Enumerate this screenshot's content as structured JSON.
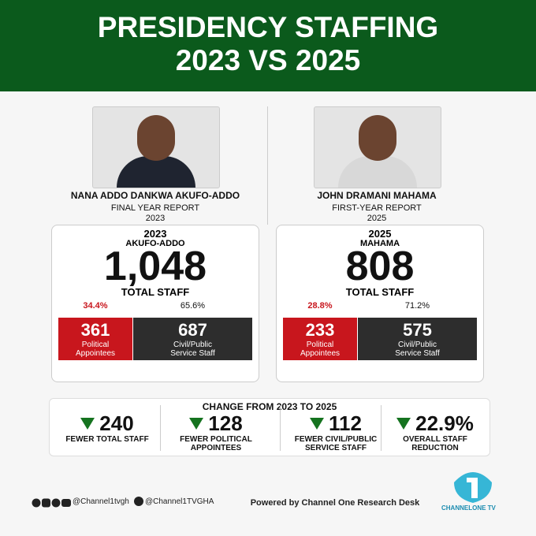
{
  "header": {
    "title_line1": "PRESIDENCY STAFFING",
    "title_line2": "2023 VS 2025"
  },
  "leaders": [
    {
      "name": "NANA ADDO DANKWA AKUFO-ADDO",
      "report": "FINAL YEAR REPORT",
      "year": "2023",
      "box": {
        "year": "2023",
        "name": "AKUFO-ADDO",
        "total": "1,048",
        "total_label": "TOTAL STAFF",
        "political": {
          "percent": "34.4%",
          "count": "361",
          "label_lines": [
            "Political",
            "Appointees"
          ]
        },
        "civil": {
          "percent": "65.6%",
          "count": "687",
          "label_lines": [
            "Civil/Public",
            "Service Staff"
          ]
        }
      }
    },
    {
      "name": "JOHN DRAMANI MAHAMA",
      "report": "FIRST-YEAR REPORT",
      "year": "2025",
      "box": {
        "year": "2025",
        "name": "MAHAMA",
        "total": "808",
        "total_label": "TOTAL STAFF",
        "political": {
          "percent": "28.8%",
          "count": "233",
          "label_lines": [
            "Political",
            "Appointees"
          ]
        },
        "civil": {
          "percent": "71.2%",
          "count": "575",
          "label_lines": [
            "Civil/Public",
            "Service Staff"
          ]
        }
      }
    }
  ],
  "change": {
    "title": "CHANGE FROM 2023 TO 2025",
    "items": [
      {
        "value": "240",
        "label_lines": [
          "FEWER TOTAL STAFF"
        ]
      },
      {
        "value": "128",
        "label_lines": [
          "FEWER POLITICAL",
          "APPOINTEES"
        ]
      },
      {
        "value": "112",
        "label_lines": [
          "FEWER CIVIL/PUBLIC",
          "SERVICE STAFF"
        ]
      },
      {
        "value": "22.9%",
        "label_lines": [
          "OVERALL STAFF",
          "REDUCTION"
        ]
      }
    ]
  },
  "footer": {
    "handle1": "@Channel1tvgh",
    "handle2": "@Channel1TVGHA",
    "powered": "Powered by Channel One Research Desk",
    "logo_text": "CHANNELONE TV"
  }
}
